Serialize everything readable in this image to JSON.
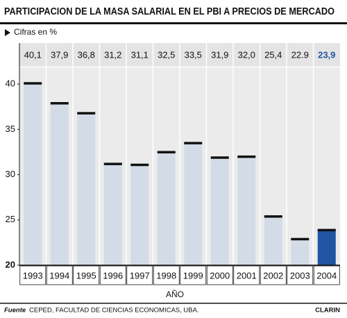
{
  "chart_data": {
    "type": "bar",
    "title": "PARTICIPACION DE LA MASA SALARIAL EN EL PBI A PRECIOS DE MERCADO",
    "subtitle": "Cifras en %",
    "x_label": "AÑO",
    "source_label": "Fuente",
    "source": "CEPED, FACULTAD DE CIENCIAS ECONOMICAS, UBA.",
    "brand": "CLARIN",
    "categories": [
      "1993",
      "1994",
      "1995",
      "1996",
      "1997",
      "1998",
      "1999",
      "2000",
      "2001",
      "2002",
      "2003",
      "2004"
    ],
    "values": [
      40.1,
      37.9,
      36.8,
      31.2,
      31.1,
      32.5,
      33.5,
      31.9,
      32.0,
      25.4,
      22.9,
      23.9
    ],
    "value_labels": [
      "40,1",
      "37,9",
      "36,8",
      "31,2",
      "31,1",
      "32,5",
      "33,5",
      "31,9",
      "32,0",
      "25,4",
      "22.9",
      "23,9"
    ],
    "colors": [
      "#d3dce6",
      "#d3dce6",
      "#d3dce6",
      "#d3dce6",
      "#d3dce6",
      "#d3dce6",
      "#d3dce6",
      "#d3dce6",
      "#d3dce6",
      "#d3dce6",
      "#d3dce6",
      "#1f55a3"
    ],
    "label_colors": [
      "#111",
      "#111",
      "#111",
      "#111",
      "#111",
      "#111",
      "#111",
      "#111",
      "#111",
      "#111",
      "#111",
      "#1f55a3"
    ],
    "ylim": [
      20,
      42
    ],
    "yticks": [
      20,
      25,
      30,
      35,
      40
    ],
    "grid": false
  }
}
